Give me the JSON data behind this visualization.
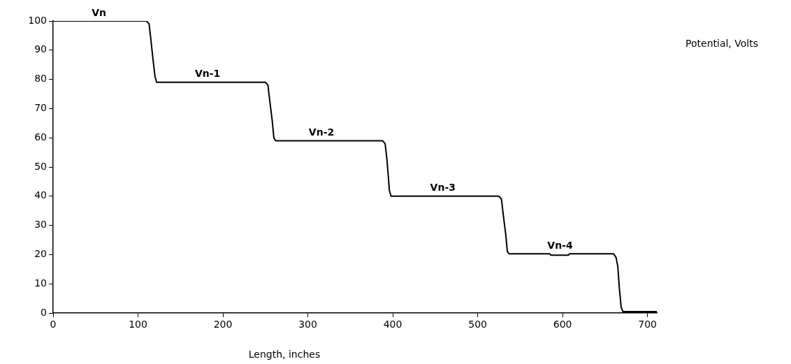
{
  "chart_data": {
    "type": "line",
    "xlabel": "Length, inches",
    "ylabel": "Potential, Volts",
    "series": [
      {
        "color": "#000000",
        "x": [
          0,
          110,
          113,
          115,
          118,
          120,
          122,
          250,
          253,
          255,
          258,
          260,
          262,
          388,
          391,
          393,
          395,
          396,
          398,
          525,
          528,
          530,
          533,
          535,
          537,
          585,
          586,
          607,
          608,
          660,
          663,
          665,
          667,
          669,
          671,
          711
        ],
        "values": [
          100,
          100,
          99,
          94,
          86,
          81,
          79,
          79,
          78,
          73,
          66,
          60,
          59,
          59,
          58,
          53,
          46,
          42,
          40,
          40,
          39,
          34,
          27,
          21,
          20.3,
          20.3,
          19.8,
          19.8,
          20.3,
          20.3,
          19,
          16,
          8,
          2,
          0.5,
          0.5
        ]
      }
    ],
    "xlim": [
      0,
      711
    ],
    "xticks": [
      0,
      100,
      200,
      300,
      400,
      500,
      600,
      700
    ],
    "ylim": [
      0,
      100
    ],
    "yticks": [
      0,
      10,
      20,
      30,
      40,
      50,
      60,
      70,
      80,
      90,
      100
    ],
    "grid": false,
    "legend": false,
    "marker": "none",
    "line_style": "solid",
    "annotations": [
      {
        "text": "Vn",
        "x": 54,
        "y": 100
      },
      {
        "text": "Vn-1",
        "x": 182,
        "y": 79
      },
      {
        "text": "Vn-2",
        "x": 316,
        "y": 59
      },
      {
        "text": "Vn-3",
        "x": 459,
        "y": 40
      },
      {
        "text": "Vn-4",
        "x": 597,
        "y": 20.3
      }
    ]
  }
}
